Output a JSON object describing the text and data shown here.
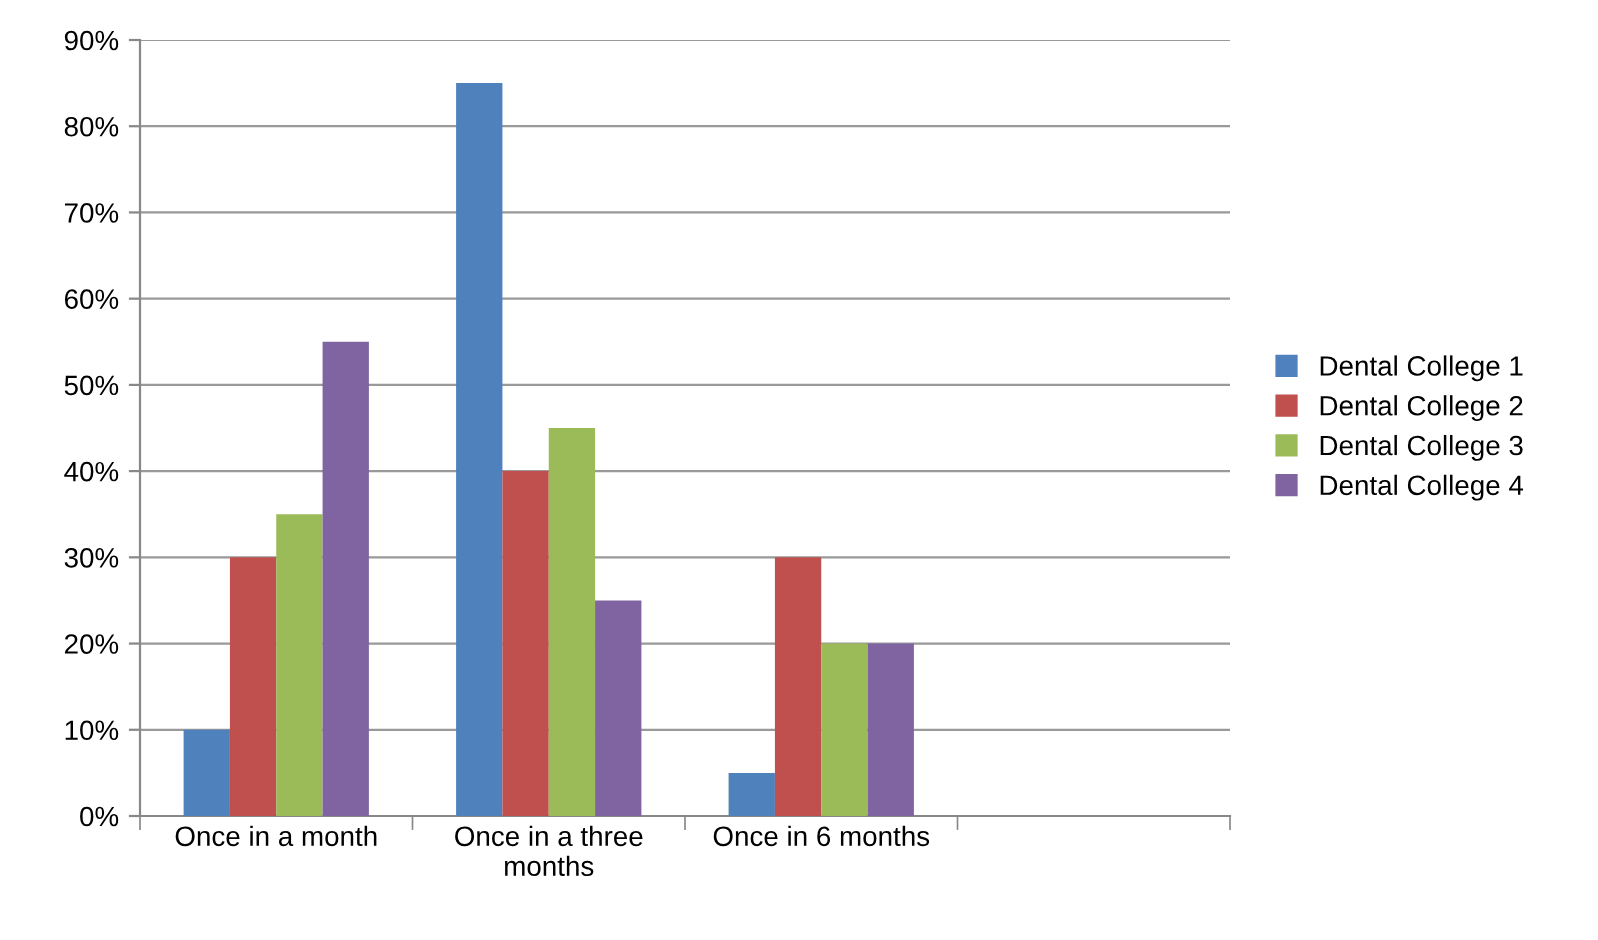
{
  "chart_data": {
    "type": "bar",
    "categories": [
      "Once in a month",
      "Once in a three\nmonths",
      "Once in 6 months",
      null
    ],
    "series": [
      {
        "name": "Dental College 1",
        "color": "#4f81bd",
        "values": [
          10,
          85,
          5,
          null
        ]
      },
      {
        "name": "Dental College 2",
        "color": "#c0504d",
        "values": [
          30,
          40,
          30,
          null
        ]
      },
      {
        "name": "Dental College 3",
        "color": "#9bbb59",
        "values": [
          35,
          45,
          20,
          null
        ]
      },
      {
        "name": "Dental College 4",
        "color": "#8064a2",
        "values": [
          55,
          25,
          20,
          null
        ]
      }
    ],
    "ylim": [
      0,
      90
    ],
    "yticks": [
      {
        "value": 0,
        "label": "0%"
      },
      {
        "value": 10,
        "label": "10%"
      },
      {
        "value": 20,
        "label": "20%"
      },
      {
        "value": 30,
        "label": "30%"
      },
      {
        "value": 40,
        "label": "40%"
      },
      {
        "value": 50,
        "label": "50%"
      },
      {
        "value": 60,
        "label": "60%"
      },
      {
        "value": 70,
        "label": "70%"
      },
      {
        "value": 80,
        "label": "80%"
      },
      {
        "value": 90,
        "label": "90%"
      }
    ],
    "grid": "y",
    "legend": "right"
  }
}
